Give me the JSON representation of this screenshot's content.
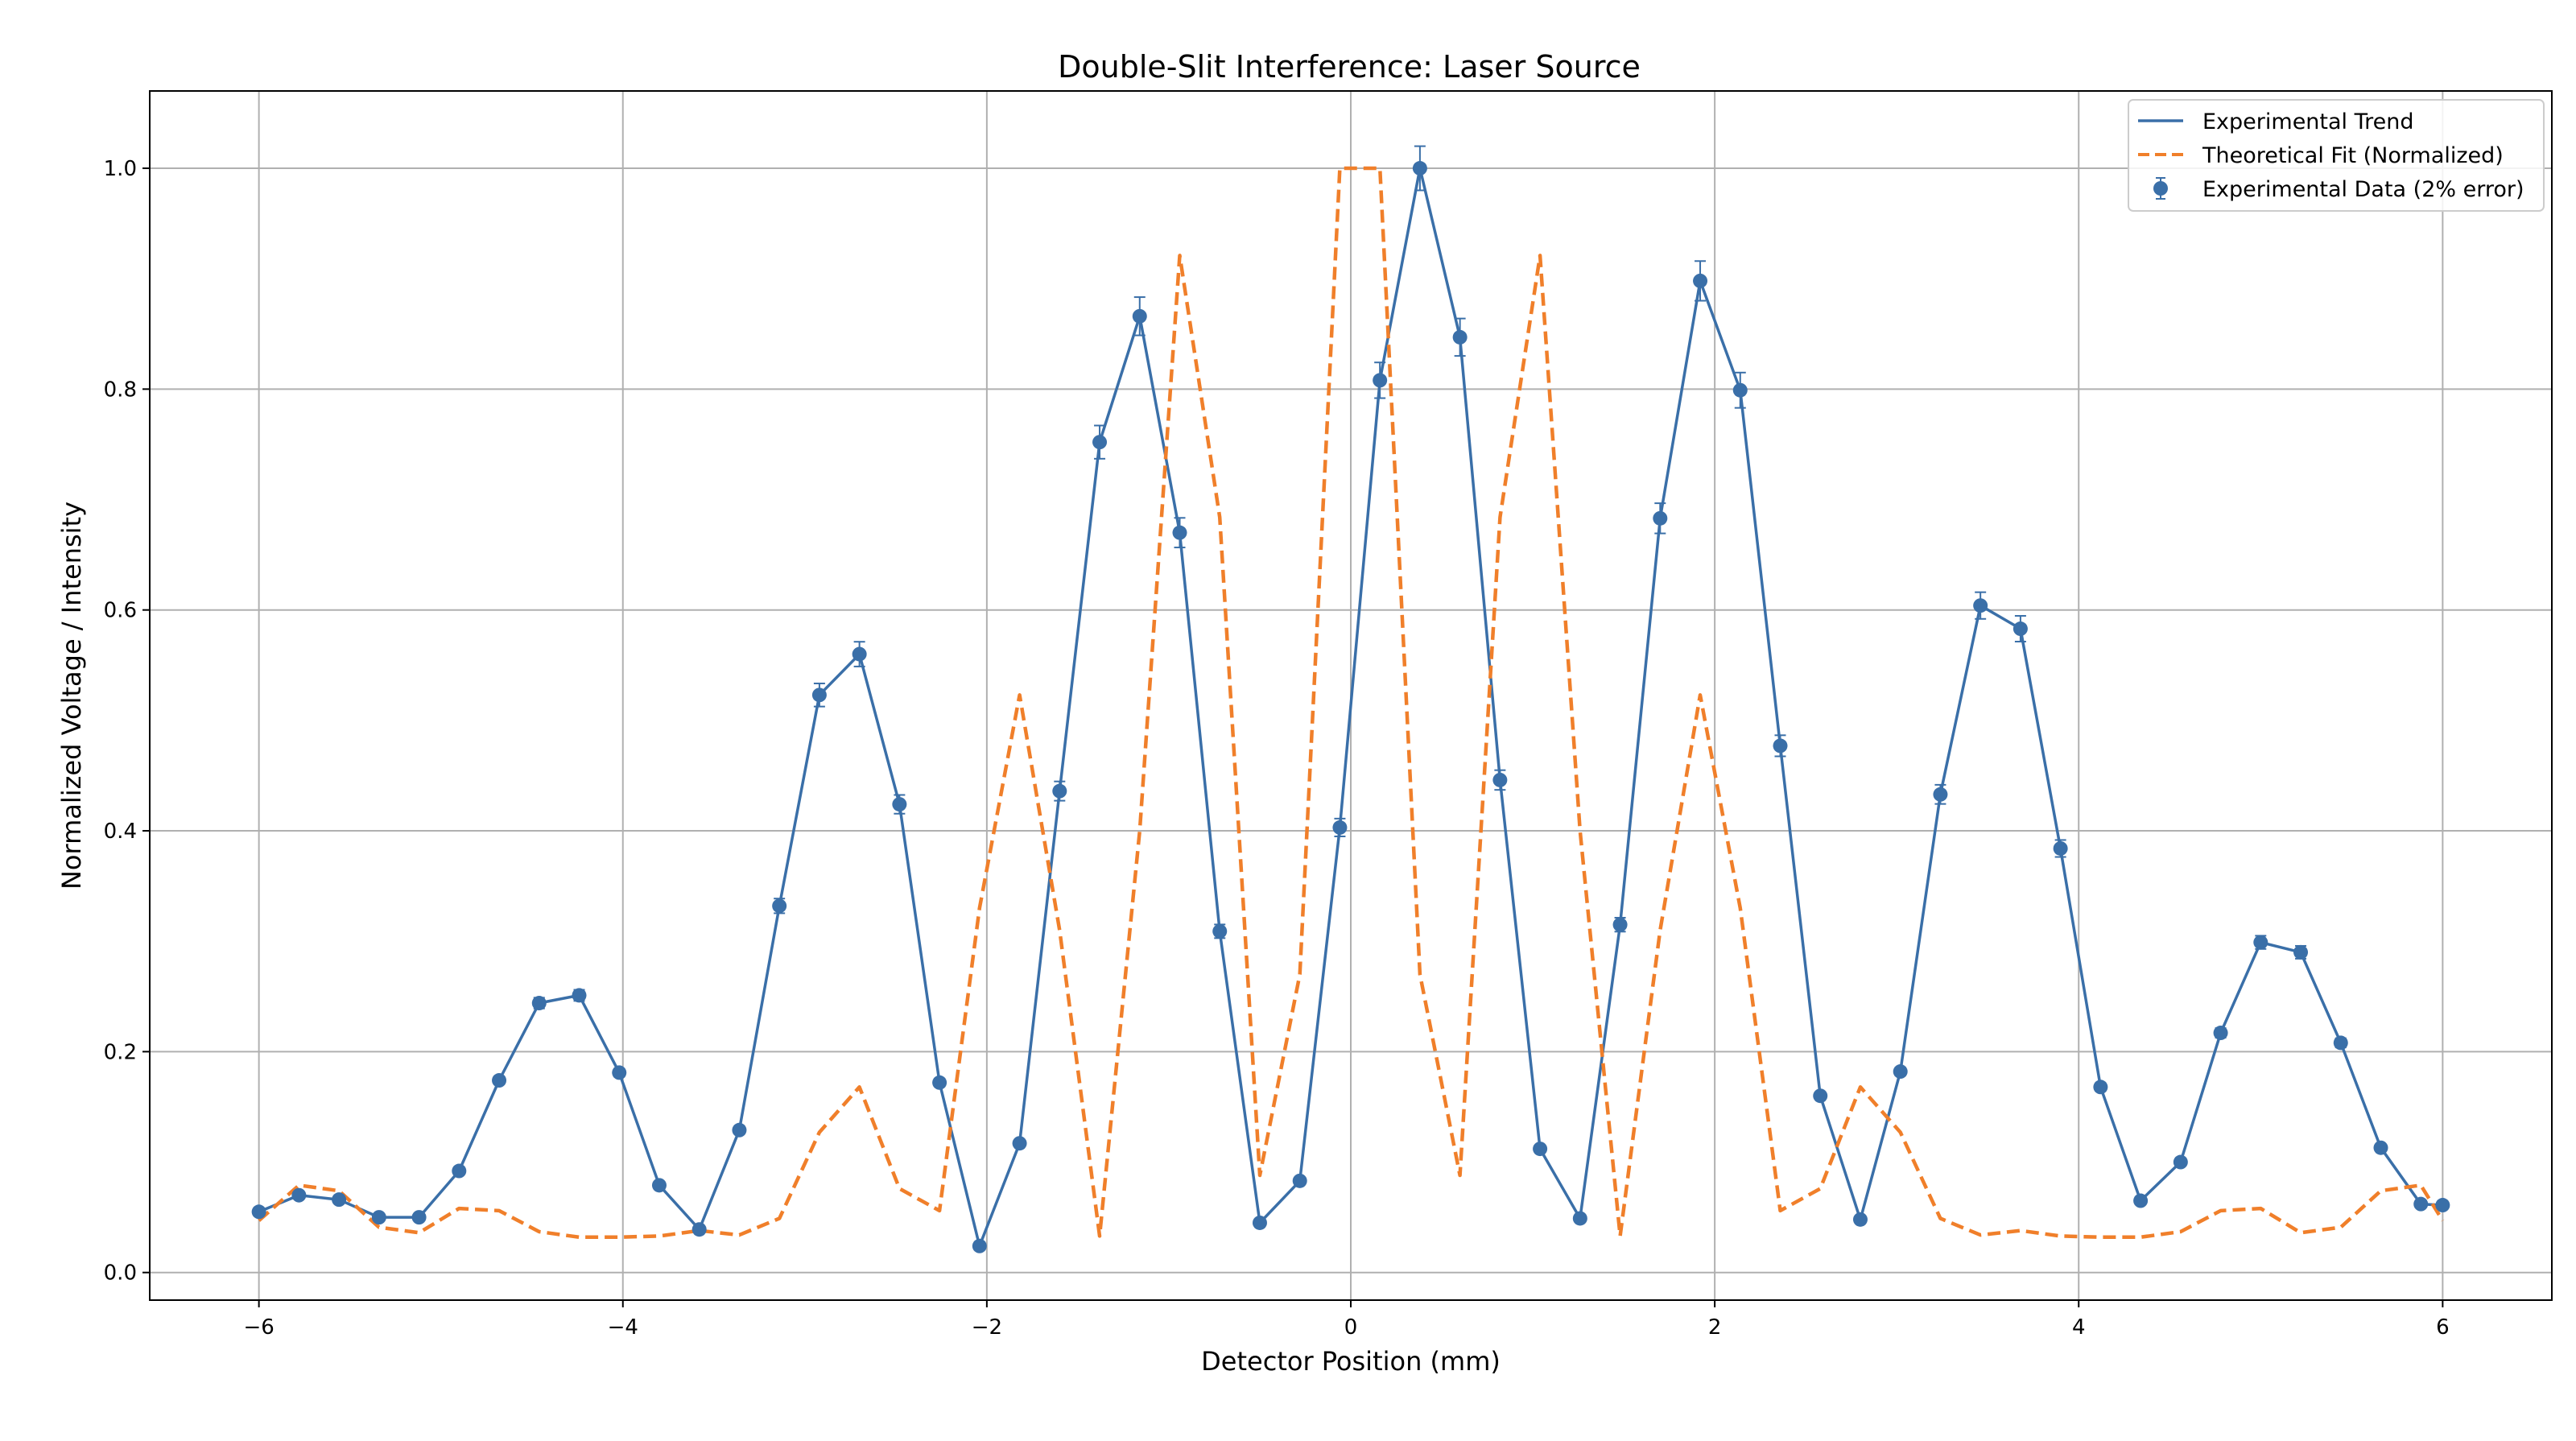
{
  "chart_data": {
    "type": "line",
    "title": "Double-Slit Interference: Laser Source",
    "xlabel": "Detector Position (mm)",
    "ylabel": "Normalized Voltage / Intensity",
    "xlim": [
      -6.6,
      6.6
    ],
    "ylim": [
      -0.025,
      1.07
    ],
    "xticks": [
      -6,
      -4,
      -2,
      0,
      2,
      4,
      6
    ],
    "xtick_labels": [
      "−6",
      "−4",
      "−2",
      "0",
      "2",
      "4",
      "6"
    ],
    "yticks": [
      0.0,
      0.2,
      0.4,
      0.6,
      0.8,
      1.0
    ],
    "ytick_labels": [
      "0.0",
      "0.2",
      "0.4",
      "0.6",
      "0.8",
      "1.0"
    ],
    "grid": true,
    "legend_position": "top-right",
    "legend": [
      "Experimental Trend",
      "Theoretical Fit (Normalized)",
      "Experimental Data (2% error)"
    ],
    "colors": {
      "experimental": "#3a6fa8",
      "theoretical": "#f07f2a",
      "grid": "#b0b0b0"
    },
    "x": [
      -6.0,
      -5.78,
      -5.56,
      -5.34,
      -5.12,
      -4.9,
      -4.68,
      -4.46,
      -4.24,
      -4.02,
      -3.8,
      -3.58,
      -3.36,
      -3.14,
      -2.92,
      -2.7,
      -2.48,
      -2.26,
      -2.04,
      -1.82,
      -1.6,
      -1.38,
      -1.16,
      -0.94,
      -0.72,
      -0.5,
      -0.28,
      -0.06,
      0.16,
      0.38,
      0.6,
      0.82,
      1.04,
      1.26,
      1.48,
      1.7,
      1.92,
      2.14,
      2.36,
      2.58,
      2.8,
      3.02,
      3.24,
      3.46,
      3.68,
      3.9,
      4.12,
      4.34,
      4.56,
      4.78,
      5.0,
      5.22,
      5.44,
      5.66,
      5.88,
      6.0
    ],
    "series": [
      {
        "name": "Experimental Trend",
        "style": "solid",
        "error_fraction": 0.02,
        "values": [
          0.055,
          0.07,
          0.066,
          0.05,
          0.05,
          0.092,
          0.174,
          0.244,
          0.251,
          0.181,
          0.079,
          0.039,
          0.129,
          0.332,
          0.523,
          0.56,
          0.424,
          0.172,
          0.024,
          0.117,
          0.436,
          0.752,
          0.866,
          0.67,
          0.309,
          0.045,
          0.083,
          0.403,
          0.808,
          1.0,
          0.847,
          0.446,
          0.112,
          0.049,
          0.315,
          0.683,
          0.898,
          0.799,
          0.477,
          0.16,
          0.048,
          0.182,
          0.433,
          0.604,
          0.583,
          0.384,
          0.168,
          0.065,
          0.1,
          0.217,
          0.299,
          0.29,
          0.208,
          0.113,
          0.062,
          0.061
        ]
      },
      {
        "name": "Theoretical Fit (Normalized)",
        "style": "dashed",
        "values": [
          0.047,
          0.079,
          0.074,
          0.041,
          0.036,
          0.058,
          0.056,
          0.037,
          0.032,
          0.032,
          0.033,
          0.038,
          0.034,
          0.049,
          0.127,
          0.168,
          0.076,
          0.056,
          0.33,
          0.523,
          0.31,
          0.033,
          0.4,
          0.921,
          0.684,
          0.088,
          0.27,
          1.0,
          1.0,
          0.27,
          0.088,
          0.684,
          0.921,
          0.4,
          0.033,
          0.31,
          0.523,
          0.33,
          0.056,
          0.076,
          0.168,
          0.127,
          0.049,
          0.034,
          0.038,
          0.033,
          0.032,
          0.032,
          0.037,
          0.056,
          0.058,
          0.036,
          0.041,
          0.074,
          0.079,
          0.047
        ]
      }
    ]
  }
}
